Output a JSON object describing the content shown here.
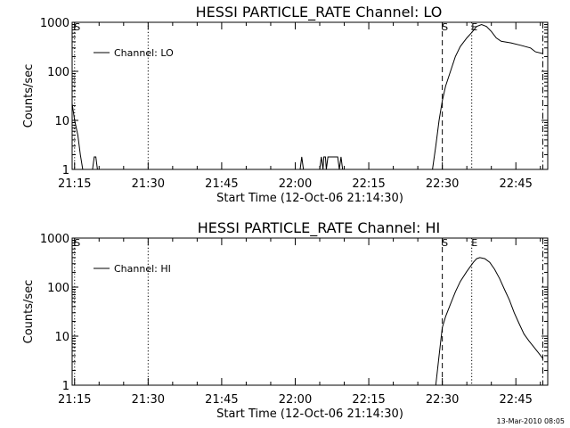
{
  "chart_data": [
    {
      "type": "line",
      "title": "HESSI PARTICLE_RATE Channel: LO",
      "xlabel": "Start Time (12-Oct-06 21:14:30)",
      "ylabel": "Counts/sec",
      "yscale": "log",
      "ylim": [
        1,
        1000
      ],
      "y_ticks": [
        1,
        10,
        100,
        1000
      ],
      "y_tick_labels": [
        "1",
        "10",
        "100",
        "1000"
      ],
      "x_ticks": [
        "21:15",
        "21:30",
        "21:45",
        "22:00",
        "22:15",
        "22:30",
        "22:45"
      ],
      "x_range": [
        "21:14:30",
        "22:51:30"
      ],
      "legend": {
        "placement": "top-left",
        "entries": [
          "Channel: LO"
        ]
      },
      "grid": false,
      "markers": [
        {
          "label": "S",
          "time": "21:15:00",
          "style": "dotted"
        },
        {
          "label": "",
          "time": "21:30:00",
          "style": "dotted"
        },
        {
          "label": "S",
          "time": "22:30:00",
          "style": "dashed"
        },
        {
          "label": "E",
          "time": "22:36:00",
          "style": "dotted"
        },
        {
          "label": "",
          "time": "22:50:30",
          "style": "dash-dot"
        }
      ],
      "series": [
        {
          "name": "Channel: LO",
          "points": [
            [
              "21:14:30",
              22
            ],
            [
              "21:15:00",
              10
            ],
            [
              "21:15:40",
              5
            ],
            [
              "21:16:10",
              2
            ],
            [
              "21:16:40",
              1
            ],
            [
              "21:18:40",
              1
            ],
            [
              "21:19:00",
              1.8
            ],
            [
              "21:19:20",
              1.8
            ],
            [
              "21:19:40",
              1
            ],
            [
              "22:01:00",
              1
            ],
            [
              "22:01:20",
              1.8
            ],
            [
              "22:01:40",
              1
            ],
            [
              "22:05:00",
              1
            ],
            [
              "22:05:20",
              1.8
            ],
            [
              "22:05:40",
              1
            ],
            [
              "22:05:50",
              1.8
            ],
            [
              "22:06:10",
              1.8
            ],
            [
              "22:06:20",
              1
            ],
            [
              "22:06:40",
              1.8
            ],
            [
              "22:08:40",
              1.8
            ],
            [
              "22:09:00",
              1
            ],
            [
              "22:09:20",
              1.8
            ],
            [
              "22:09:40",
              1
            ],
            [
              "22:28:00",
              1
            ],
            [
              "22:28:40",
              3
            ],
            [
              "22:29:20",
              10
            ],
            [
              "22:30:00",
              25
            ],
            [
              "22:30:40",
              50
            ],
            [
              "22:31:40",
              100
            ],
            [
              "22:32:40",
              200
            ],
            [
              "22:33:40",
              320
            ],
            [
              "22:35:00",
              480
            ],
            [
              "22:36:00",
              620
            ],
            [
              "22:37:00",
              820
            ],
            [
              "22:38:00",
              900
            ],
            [
              "22:39:00",
              820
            ],
            [
              "22:40:00",
              650
            ],
            [
              "22:41:00",
              480
            ],
            [
              "22:42:00",
              410
            ],
            [
              "22:44:00",
              380
            ],
            [
              "22:46:00",
              340
            ],
            [
              "22:48:00",
              300
            ],
            [
              "22:49:00",
              250
            ],
            [
              "22:50:30",
              230
            ]
          ]
        }
      ]
    },
    {
      "type": "line",
      "title": "HESSI PARTICLE_RATE Channel: HI",
      "xlabel": "Start Time (12-Oct-06 21:14:30)",
      "ylabel": "Counts/sec",
      "yscale": "log",
      "ylim": [
        1,
        1000
      ],
      "y_ticks": [
        1,
        10,
        100,
        1000
      ],
      "y_tick_labels": [
        "1",
        "10",
        "100",
        "1000"
      ],
      "x_ticks": [
        "21:15",
        "21:30",
        "21:45",
        "22:00",
        "22:15",
        "22:30",
        "22:45"
      ],
      "x_range": [
        "21:14:30",
        "22:51:30"
      ],
      "legend": {
        "placement": "top-left",
        "entries": [
          "Channel: HI"
        ]
      },
      "grid": false,
      "markers": [
        {
          "label": "S",
          "time": "21:15:00",
          "style": "dotted"
        },
        {
          "label": "",
          "time": "21:30:00",
          "style": "dotted"
        },
        {
          "label": "S",
          "time": "22:30:00",
          "style": "dashed"
        },
        {
          "label": "E",
          "time": "22:36:00",
          "style": "dotted"
        },
        {
          "label": "",
          "time": "22:50:30",
          "style": "dash-dot"
        }
      ],
      "series": [
        {
          "name": "Channel: HI",
          "points": [
            [
              "22:28:40",
              1
            ],
            [
              "22:29:20",
              4
            ],
            [
              "22:30:00",
              15
            ],
            [
              "22:30:40",
              25
            ],
            [
              "22:31:40",
              45
            ],
            [
              "22:32:40",
              80
            ],
            [
              "22:33:40",
              130
            ],
            [
              "22:35:00",
              210
            ],
            [
              "22:36:20",
              320
            ],
            [
              "22:37:00",
              380
            ],
            [
              "22:37:40",
              400
            ],
            [
              "22:38:40",
              380
            ],
            [
              "22:39:40",
              320
            ],
            [
              "22:40:40",
              230
            ],
            [
              "22:41:40",
              150
            ],
            [
              "22:42:40",
              90
            ],
            [
              "22:43:40",
              55
            ],
            [
              "22:44:40",
              30
            ],
            [
              "22:45:40",
              18
            ],
            [
              "22:46:40",
              11
            ],
            [
              "22:47:40",
              8
            ],
            [
              "22:48:40",
              6
            ],
            [
              "22:49:40",
              4.5
            ],
            [
              "22:50:30",
              3.5
            ]
          ]
        }
      ]
    }
  ],
  "footer": {
    "timestamp": "13-Mar-2010 08:05"
  }
}
